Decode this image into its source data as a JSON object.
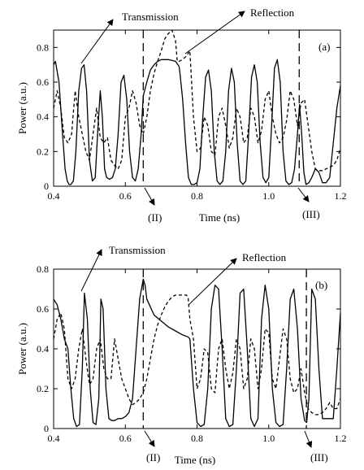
{
  "chart_data": [
    {
      "type": "line",
      "panel_label": "(a)",
      "xlabel": "Time (ns)",
      "ylabel": "Power (a.u.)",
      "xlim": [
        0.4,
        1.2
      ],
      "ylim": [
        0,
        0.9
      ],
      "x_ticks": [
        "0.4",
        "0.6",
        "0.8",
        "1.0",
        "1.2"
      ],
      "y_ticks": [
        "0",
        "0.2",
        "0.4",
        "0.6",
        "0.8"
      ],
      "annotations": {
        "transmission": "Transmission",
        "reflection": "Reflection",
        "marker_1": "(II)",
        "marker_2": "(III)"
      },
      "markers_x": [
        0.65,
        1.085
      ],
      "series": [
        {
          "name": "Transmission",
          "style": "solid",
          "x": [
            0.4,
            0.405,
            0.415,
            0.425,
            0.432,
            0.438,
            0.443,
            0.448,
            0.455,
            0.462,
            0.47,
            0.478,
            0.485,
            0.492,
            0.5,
            0.508,
            0.516,
            0.524,
            0.53,
            0.536,
            0.542,
            0.548,
            0.556,
            0.564,
            0.572,
            0.58,
            0.588,
            0.596,
            0.604,
            0.612,
            0.62,
            0.628,
            0.636,
            0.644,
            0.65,
            0.66,
            0.67,
            0.68,
            0.69,
            0.7,
            0.72,
            0.74,
            0.75,
            0.752,
            0.76,
            0.768,
            0.776,
            0.784,
            0.792,
            0.8,
            0.808,
            0.816,
            0.824,
            0.832,
            0.84,
            0.848,
            0.856,
            0.864,
            0.872,
            0.88,
            0.888,
            0.896,
            0.904,
            0.912,
            0.92,
            0.928,
            0.936,
            0.944,
            0.952,
            0.96,
            0.968,
            0.976,
            0.984,
            0.992,
            1.0,
            1.008,
            1.016,
            1.024,
            1.032,
            1.04,
            1.048,
            1.056,
            1.064,
            1.072,
            1.08,
            1.086,
            1.092,
            1.098,
            1.104,
            1.112,
            1.12,
            1.13,
            1.14,
            1.15,
            1.16,
            1.17,
            1.18,
            1.19,
            1.2
          ],
          "y": [
            0.7,
            0.72,
            0.6,
            0.3,
            0.1,
            0.03,
            0.01,
            0.01,
            0.03,
            0.2,
            0.55,
            0.68,
            0.7,
            0.55,
            0.15,
            0.03,
            0.05,
            0.35,
            0.55,
            0.4,
            0.1,
            0.05,
            0.04,
            0.05,
            0.1,
            0.3,
            0.6,
            0.64,
            0.5,
            0.2,
            0.05,
            0.03,
            0.1,
            0.3,
            0.52,
            0.6,
            0.67,
            0.7,
            0.72,
            0.73,
            0.73,
            0.72,
            0.69,
            0.66,
            0.5,
            0.25,
            0.05,
            0.01,
            0.01,
            0.02,
            0.1,
            0.4,
            0.63,
            0.67,
            0.55,
            0.2,
            0.03,
            0.01,
            0.03,
            0.2,
            0.55,
            0.68,
            0.6,
            0.25,
            0.03,
            0.01,
            0.03,
            0.3,
            0.63,
            0.7,
            0.6,
            0.25,
            0.05,
            0.02,
            0.05,
            0.35,
            0.68,
            0.73,
            0.6,
            0.2,
            0.03,
            0.01,
            0.02,
            0.1,
            0.3,
            0.47,
            0.3,
            0.08,
            0.01,
            0.02,
            0.05,
            0.1,
            0.08,
            0.02,
            0.02,
            0.05,
            0.25,
            0.45,
            0.58
          ]
        },
        {
          "name": "Reflection",
          "style": "dashed",
          "x": [
            0.4,
            0.41,
            0.42,
            0.43,
            0.44,
            0.45,
            0.46,
            0.47,
            0.48,
            0.49,
            0.5,
            0.51,
            0.52,
            0.53,
            0.54,
            0.55,
            0.56,
            0.57,
            0.58,
            0.59,
            0.6,
            0.61,
            0.62,
            0.63,
            0.64,
            0.65,
            0.66,
            0.67,
            0.68,
            0.69,
            0.7,
            0.71,
            0.72,
            0.73,
            0.74,
            0.745,
            0.75,
            0.76,
            0.77,
            0.78,
            0.79,
            0.8,
            0.81,
            0.82,
            0.83,
            0.84,
            0.85,
            0.86,
            0.87,
            0.88,
            0.89,
            0.9,
            0.91,
            0.92,
            0.93,
            0.94,
            0.95,
            0.96,
            0.97,
            0.98,
            0.99,
            1.0,
            1.01,
            1.02,
            1.03,
            1.04,
            1.05,
            1.06,
            1.07,
            1.08,
            1.09,
            1.1,
            1.11,
            1.12,
            1.13,
            1.14,
            1.15,
            1.16,
            1.17,
            1.18,
            1.19,
            1.2
          ],
          "y": [
            0.45,
            0.55,
            0.45,
            0.28,
            0.25,
            0.3,
            0.55,
            0.4,
            0.3,
            0.2,
            0.15,
            0.3,
            0.45,
            0.28,
            0.25,
            0.28,
            0.15,
            0.12,
            0.1,
            0.15,
            0.4,
            0.45,
            0.55,
            0.48,
            0.35,
            0.3,
            0.4,
            0.55,
            0.65,
            0.72,
            0.78,
            0.85,
            0.88,
            0.9,
            0.84,
            0.72,
            0.72,
            0.73,
            0.75,
            0.78,
            0.4,
            0.2,
            0.22,
            0.4,
            0.35,
            0.2,
            0.18,
            0.4,
            0.45,
            0.35,
            0.22,
            0.28,
            0.45,
            0.4,
            0.25,
            0.28,
            0.45,
            0.4,
            0.25,
            0.32,
            0.5,
            0.55,
            0.4,
            0.3,
            0.25,
            0.28,
            0.38,
            0.55,
            0.5,
            0.35,
            0.48,
            0.5,
            0.35,
            0.2,
            0.1,
            0.09,
            0.09,
            0.1,
            0.11,
            0.12,
            0.15,
            0.22
          ]
        }
      ]
    },
    {
      "type": "line",
      "panel_label": "(b)",
      "xlabel": "Time (ns)",
      "ylabel": "Power (a.u.)",
      "xlim": [
        0.4,
        1.2
      ],
      "ylim": [
        0,
        0.8
      ],
      "x_ticks": [
        "0.4",
        "0.6",
        "0.8",
        "1.0",
        "1.2"
      ],
      "y_ticks": [
        "0",
        "0.2",
        "0.4",
        "0.6",
        "0.8"
      ],
      "annotations": {
        "transmission": "Transmission",
        "reflection": "Reflection",
        "marker_1": "(II)",
        "marker_2": "(III)"
      },
      "markers_x": [
        0.65,
        1.105
      ],
      "series": [
        {
          "name": "Transmission",
          "style": "solid",
          "x": [
            0.4,
            0.41,
            0.42,
            0.43,
            0.44,
            0.448,
            0.456,
            0.464,
            0.472,
            0.48,
            0.486,
            0.494,
            0.502,
            0.51,
            0.518,
            0.526,
            0.532,
            0.538,
            0.546,
            0.554,
            0.562,
            0.57,
            0.58,
            0.59,
            0.6,
            0.61,
            0.62,
            0.63,
            0.64,
            0.65,
            0.655,
            0.66,
            0.68,
            0.7,
            0.72,
            0.74,
            0.76,
            0.775,
            0.78,
            0.79,
            0.8,
            0.81,
            0.82,
            0.83,
            0.84,
            0.85,
            0.86,
            0.87,
            0.88,
            0.89,
            0.9,
            0.91,
            0.92,
            0.93,
            0.94,
            0.95,
            0.96,
            0.97,
            0.98,
            0.99,
            1.0,
            1.01,
            1.02,
            1.03,
            1.04,
            1.05,
            1.06,
            1.07,
            1.08,
            1.09,
            1.1,
            1.106,
            1.112,
            1.12,
            1.13,
            1.14,
            1.15,
            1.16,
            1.17,
            1.18,
            1.19,
            1.2
          ],
          "y": [
            0.65,
            0.62,
            0.55,
            0.45,
            0.4,
            0.2,
            0.05,
            0.01,
            0.02,
            0.3,
            0.68,
            0.55,
            0.2,
            0.03,
            0.02,
            0.15,
            0.65,
            0.6,
            0.2,
            0.05,
            0.04,
            0.04,
            0.05,
            0.05,
            0.06,
            0.08,
            0.15,
            0.4,
            0.65,
            0.75,
            0.72,
            0.65,
            0.57,
            0.54,
            0.51,
            0.49,
            0.47,
            0.46,
            0.45,
            0.2,
            0.03,
            0.01,
            0.02,
            0.2,
            0.6,
            0.72,
            0.7,
            0.4,
            0.05,
            0.01,
            0.02,
            0.3,
            0.68,
            0.7,
            0.4,
            0.05,
            0.01,
            0.05,
            0.55,
            0.72,
            0.6,
            0.2,
            0.03,
            0.01,
            0.02,
            0.3,
            0.65,
            0.7,
            0.5,
            0.15,
            0.04,
            0.03,
            0.15,
            0.7,
            0.65,
            0.3,
            0.05,
            0.05,
            0.05,
            0.05,
            0.3,
            0.58
          ]
        },
        {
          "name": "Reflection",
          "style": "dashed",
          "x": [
            0.4,
            0.41,
            0.42,
            0.43,
            0.44,
            0.45,
            0.46,
            0.47,
            0.48,
            0.49,
            0.5,
            0.51,
            0.52,
            0.53,
            0.54,
            0.55,
            0.56,
            0.57,
            0.58,
            0.59,
            0.6,
            0.61,
            0.62,
            0.63,
            0.64,
            0.65,
            0.66,
            0.67,
            0.68,
            0.69,
            0.7,
            0.71,
            0.72,
            0.73,
            0.74,
            0.75,
            0.76,
            0.77,
            0.775,
            0.78,
            0.79,
            0.8,
            0.81,
            0.82,
            0.83,
            0.84,
            0.85,
            0.86,
            0.87,
            0.88,
            0.89,
            0.9,
            0.91,
            0.92,
            0.93,
            0.94,
            0.95,
            0.96,
            0.97,
            0.98,
            0.99,
            1.0,
            1.01,
            1.02,
            1.03,
            1.04,
            1.05,
            1.06,
            1.07,
            1.08,
            1.09,
            1.1,
            1.11,
            1.12,
            1.13,
            1.14,
            1.15,
            1.16,
            1.17,
            1.18,
            1.19,
            1.2
          ],
          "y": [
            0.45,
            0.55,
            0.58,
            0.5,
            0.25,
            0.2,
            0.25,
            0.4,
            0.5,
            0.35,
            0.22,
            0.25,
            0.4,
            0.45,
            0.3,
            0.25,
            0.25,
            0.45,
            0.35,
            0.25,
            0.2,
            0.15,
            0.12,
            0.13,
            0.15,
            0.18,
            0.25,
            0.35,
            0.45,
            0.52,
            0.57,
            0.61,
            0.64,
            0.66,
            0.67,
            0.67,
            0.67,
            0.67,
            0.66,
            0.55,
            0.45,
            0.2,
            0.25,
            0.4,
            0.38,
            0.2,
            0.18,
            0.4,
            0.45,
            0.3,
            0.2,
            0.28,
            0.45,
            0.4,
            0.2,
            0.25,
            0.45,
            0.4,
            0.2,
            0.3,
            0.5,
            0.48,
            0.25,
            0.2,
            0.35,
            0.5,
            0.45,
            0.25,
            0.18,
            0.2,
            0.3,
            0.18,
            0.1,
            0.08,
            0.07,
            0.07,
            0.08,
            0.1,
            0.13,
            0.1,
            0.1,
            0.15
          ]
        }
      ]
    }
  ]
}
